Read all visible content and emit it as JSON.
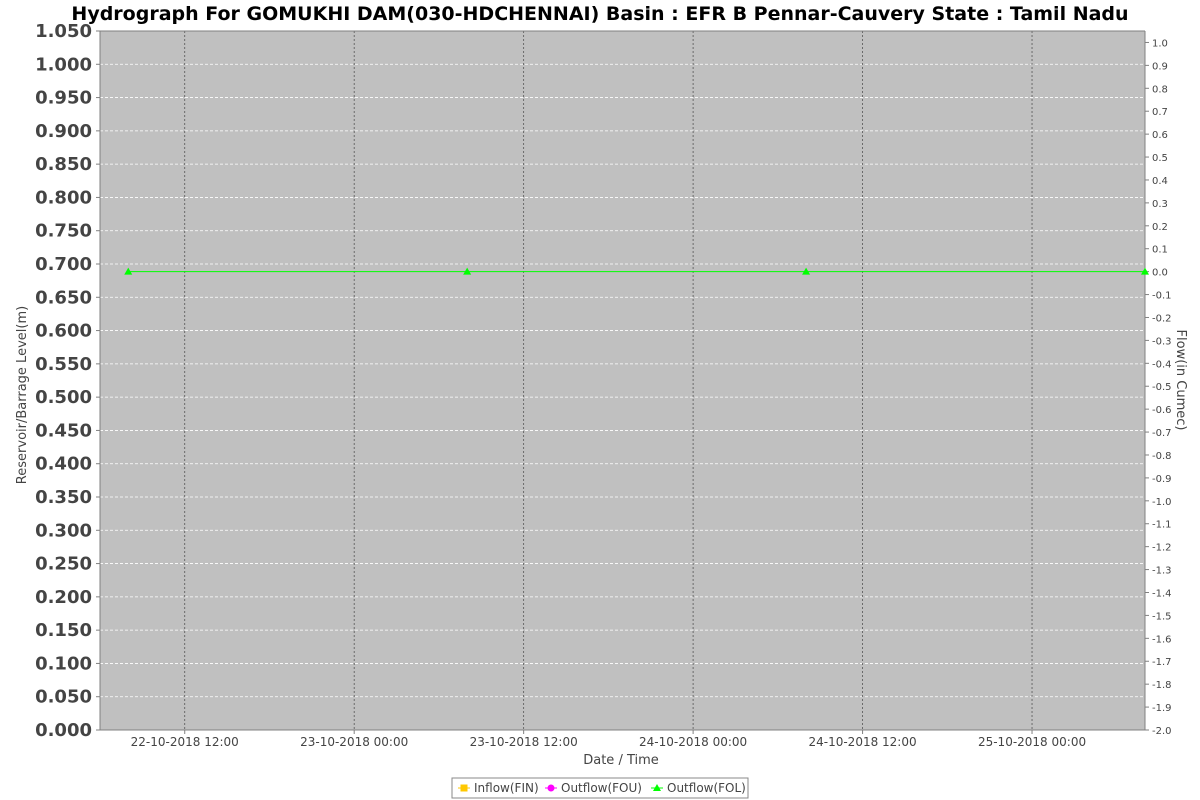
{
  "chart_data": {
    "type": "line",
    "title": "Hydrograph For GOMUKHI DAM(030-HDCHENNAI) Basin : EFR B Pennar-Cauvery State : Tamil Nadu",
    "xlabel": "Date / Time",
    "ylabel_left": "Reservoir/Barrage Level(m)",
    "ylabel_right": "Flow(in Cumec)",
    "x_range": [
      "2018-10-22 06:00",
      "2018-10-25 08:00"
    ],
    "x_ticks": [
      {
        "t": "2018-10-22 12:00",
        "label": "22-10-2018 12:00"
      },
      {
        "t": "2018-10-23 00:00",
        "label": "23-10-2018 00:00"
      },
      {
        "t": "2018-10-23 12:00",
        "label": "23-10-2018 12:00"
      },
      {
        "t": "2018-10-24 00:00",
        "label": "24-10-2018 00:00"
      },
      {
        "t": "2018-10-24 12:00",
        "label": "24-10-2018 12:00"
      },
      {
        "t": "2018-10-25 00:00",
        "label": "25-10-2018 00:00"
      }
    ],
    "ylim_left": [
      0,
      1.05
    ],
    "yticks_left": [
      "0.000",
      "0.050",
      "0.100",
      "0.150",
      "0.200",
      "0.250",
      "0.300",
      "0.350",
      "0.400",
      "0.450",
      "0.500",
      "0.550",
      "0.600",
      "0.650",
      "0.700",
      "0.750",
      "0.800",
      "0.850",
      "0.900",
      "0.950",
      "1.000",
      "1.050"
    ],
    "ylim_right": [
      -2.0,
      1.05
    ],
    "yticks_right": [
      "1.0",
      "0.9",
      "0.8",
      "0.7",
      "0.6",
      "0.5",
      "0.4",
      "0.3",
      "0.2",
      "0.1",
      "0.0",
      "-0.1",
      "-0.2",
      "-0.3",
      "-0.4",
      "-0.5",
      "-0.6",
      "-0.7",
      "-0.8",
      "-0.9",
      "-1.0",
      "-1.1",
      "-1.2",
      "-1.3",
      "-1.4",
      "-1.5",
      "-1.6",
      "-1.7",
      "-1.8",
      "-1.9",
      "-2.0"
    ],
    "grid": true,
    "legend_position": "bottom-center",
    "series": [
      {
        "name": "Inflow(FIN)",
        "axis": "right",
        "color": "#ffc800",
        "marker": "square",
        "points": []
      },
      {
        "name": "Outflow(FOU)",
        "axis": "right",
        "color": "#ff00ff",
        "marker": "circle",
        "points": []
      },
      {
        "name": "Outflow(FOL)",
        "axis": "right",
        "color": "#00ff00",
        "marker": "triangle",
        "points": [
          {
            "t": "2018-10-22 08:00",
            "y": 0.0
          },
          {
            "t": "2018-10-23 08:00",
            "y": 0.0
          },
          {
            "t": "2018-10-24 08:00",
            "y": 0.0
          },
          {
            "t": "2018-10-25 08:00",
            "y": 0.0
          }
        ]
      }
    ]
  }
}
